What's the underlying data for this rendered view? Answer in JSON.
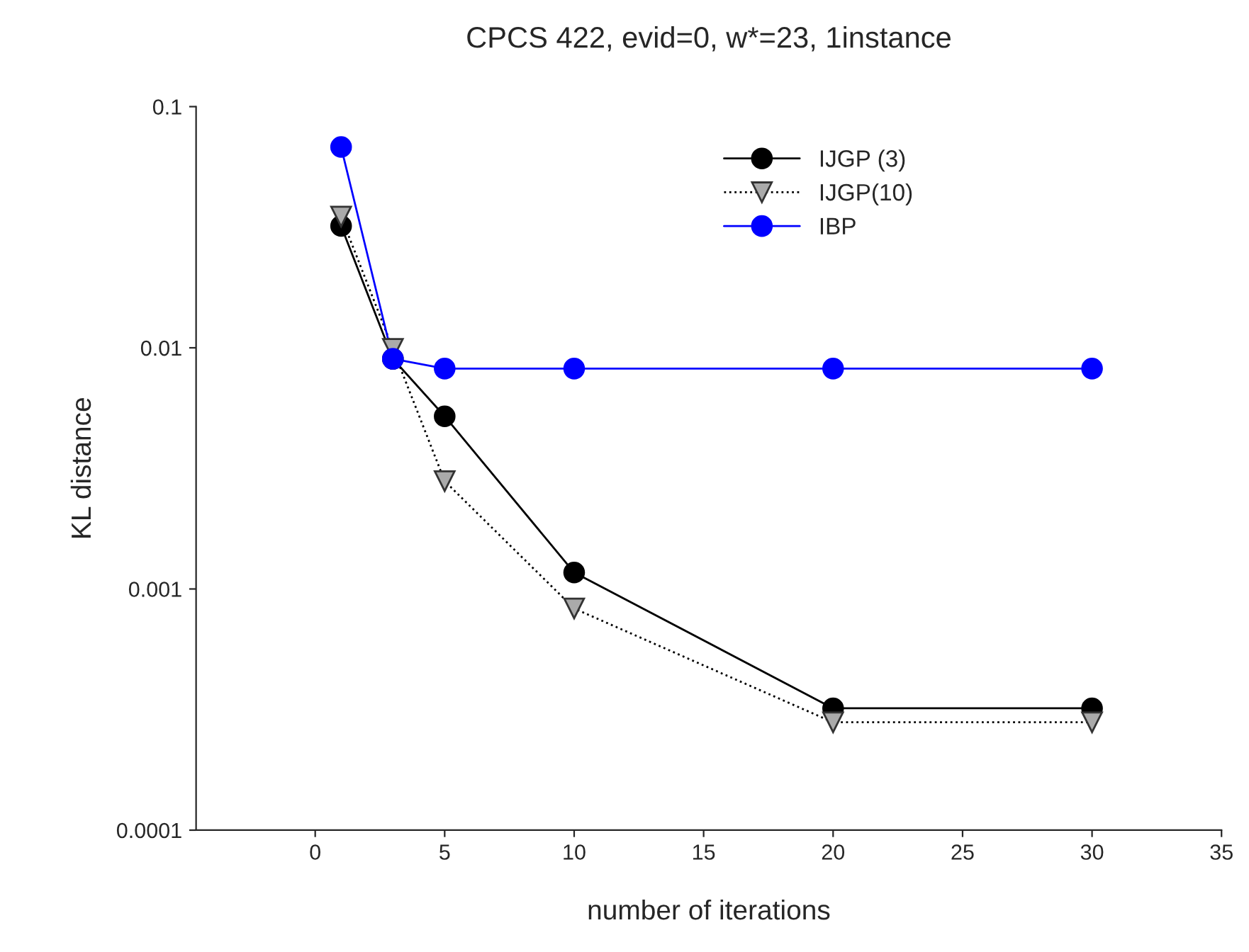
{
  "chart_data": {
    "type": "line",
    "title": "CPCS 422, evid=0, w*=23, 1instance",
    "xlabel": "number of iterations",
    "ylabel": "KL distance",
    "x": [
      1,
      3,
      5,
      10,
      20,
      30
    ],
    "series": [
      {
        "name": "IJGP (3)",
        "color": "#000000",
        "marker": "circle",
        "line_style": "solid",
        "values": [
          0.032,
          0.009,
          0.0052,
          0.00117,
          0.00032,
          0.00032
        ]
      },
      {
        "name": "IJGP(10)",
        "color": "#000000",
        "marker": "triangle",
        "line_style": "dotted",
        "values": [
          0.035,
          0.0099,
          0.0028,
          0.00083,
          0.00028,
          0.00028
        ]
      },
      {
        "name": "IBP",
        "color": "#0000ff",
        "marker": "circle",
        "line_style": "solid",
        "values": [
          0.068,
          0.009,
          0.0082,
          0.0082,
          0.0082,
          0.0082
        ]
      }
    ],
    "log": "y",
    "xlim": [
      -4.6,
      35
    ],
    "xticks": [
      0,
      5,
      10,
      15,
      20,
      25,
      30,
      35
    ],
    "ylim": [
      0.0001,
      0.1
    ],
    "yticks": [
      0.0001,
      0.001,
      0.01,
      0.1
    ],
    "legend": "top right",
    "grid": false
  }
}
